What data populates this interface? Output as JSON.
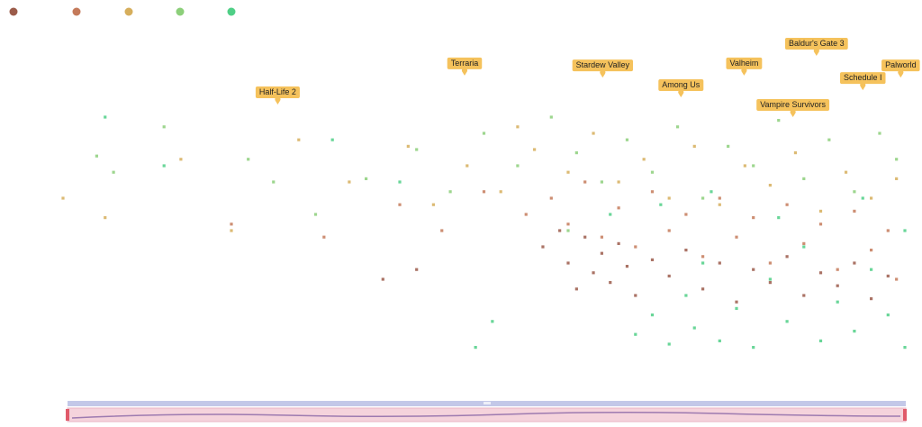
{
  "chart_data": {
    "type": "scatter",
    "xlim": [
      0,
      100
    ],
    "ylim": [
      0,
      100
    ],
    "series": [
      {
        "color": "#9b5b4a",
        "x": [
          38,
          42,
          57,
          59,
          60,
          61,
          62,
          63,
          64,
          65,
          66,
          67,
          68,
          70,
          72,
          74,
          76,
          78,
          80,
          82,
          84,
          86,
          88,
          90,
          92,
          94,
          96,
          98
        ],
        "y": [
          25,
          28,
          35,
          40,
          30,
          22,
          38,
          27,
          33,
          24,
          36,
          29,
          20,
          31,
          26,
          34,
          22,
          30,
          18,
          28,
          24,
          32,
          20,
          27,
          23,
          30,
          19,
          26
        ]
      },
      {
        "color": "#c47a5a",
        "x": [
          20,
          31,
          40,
          45,
          50,
          55,
          58,
          60,
          62,
          64,
          66,
          68,
          70,
          72,
          74,
          76,
          78,
          80,
          82,
          84,
          86,
          88,
          90,
          92,
          94,
          96,
          98,
          99
        ],
        "y": [
          42,
          38,
          48,
          40,
          52,
          45,
          50,
          42,
          55,
          38,
          47,
          35,
          52,
          40,
          45,
          32,
          50,
          38,
          44,
          30,
          48,
          36,
          42,
          28,
          46,
          34,
          40,
          25
        ]
      },
      {
        "color": "#d6ae5c",
        "x": [
          0,
          20,
          14,
          28,
          34,
          44,
          48,
          52,
          56,
          60,
          63,
          66,
          69,
          72,
          75,
          78,
          81,
          84,
          87,
          90,
          93,
          96,
          99,
          5,
          41,
          54
        ],
        "y": [
          50,
          40,
          62,
          68,
          55,
          48,
          60,
          52,
          65,
          58,
          70,
          55,
          62,
          50,
          66,
          48,
          60,
          54,
          64,
          46,
          58,
          50,
          56,
          44,
          66,
          72
        ]
      },
      {
        "color": "#8ccf7a",
        "x": [
          4,
          6,
          12,
          22,
          30,
          36,
          42,
          46,
          50,
          54,
          58,
          61,
          64,
          67,
          70,
          73,
          76,
          79,
          82,
          85,
          88,
          91,
          94,
          97,
          99,
          25,
          60
        ],
        "y": [
          63,
          58,
          72,
          62,
          45,
          56,
          65,
          52,
          70,
          60,
          75,
          64,
          55,
          68,
          58,
          72,
          50,
          66,
          60,
          74,
          56,
          68,
          52,
          70,
          62,
          55,
          40
        ]
      },
      {
        "color": "#4fcf86",
        "x": [
          5,
          12,
          32,
          40,
          49,
          51,
          65,
          68,
          70,
          72,
          74,
          75,
          76,
          78,
          80,
          82,
          84,
          86,
          88,
          90,
          92,
          94,
          96,
          98,
          100,
          100,
          95,
          85,
          77,
          71
        ],
        "y": [
          75,
          60,
          68,
          55,
          4,
          12,
          45,
          8,
          14,
          5,
          20,
          10,
          30,
          6,
          16,
          4,
          25,
          12,
          35,
          6,
          18,
          9,
          28,
          14,
          4,
          40,
          50,
          44,
          52,
          48
        ]
      }
    ],
    "annotation_color": "#f5c25c",
    "annotations": [
      {
        "text": "Half-Life 2",
        "x": 25.5,
        "y": 78.9
      },
      {
        "text": "Terraria",
        "x": 47.7,
        "y": 87.8
      },
      {
        "text": "Stardew Valley",
        "x": 64.1,
        "y": 87.2
      },
      {
        "text": "Among Us",
        "x": 73.4,
        "y": 81.1
      },
      {
        "text": "Valheim",
        "x": 80.9,
        "y": 87.8
      },
      {
        "text": "Baldur's Gate 3",
        "x": 89.5,
        "y": 93.9
      },
      {
        "text": "Vampire Survivors",
        "x": 86.7,
        "y": 75
      },
      {
        "text": "Schedule I",
        "x": 95,
        "y": 83.3
      },
      {
        "text": "Palworld",
        "x": 99.5,
        "y": 87.2
      }
    ]
  }
}
